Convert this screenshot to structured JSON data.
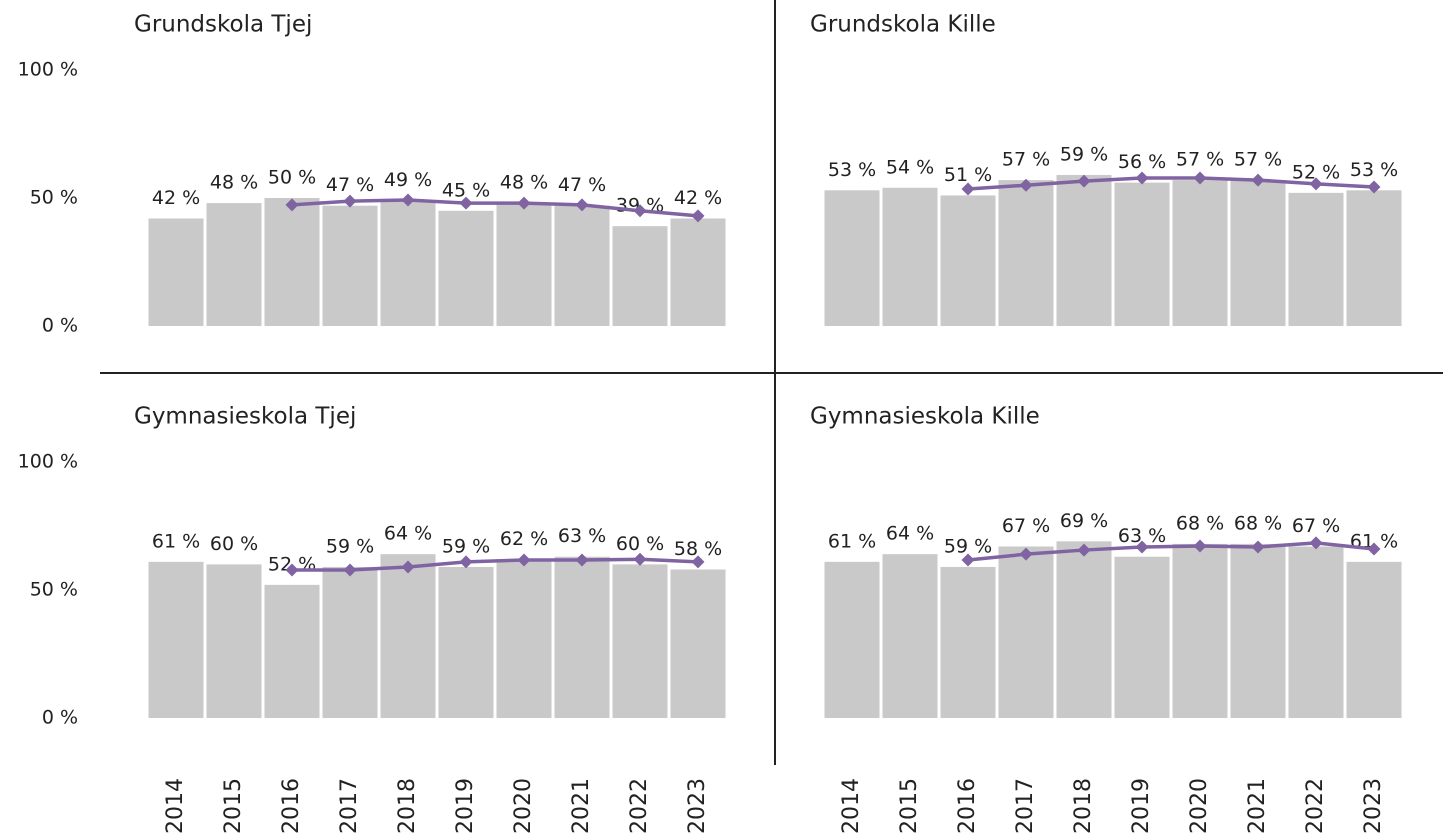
{
  "chart_data": [
    {
      "type": "bar-line",
      "title": "Grundskola Tjej",
      "ylim": [
        0,
        100
      ],
      "yticks": [
        {
          "value": 0,
          "label": "0 %"
        },
        {
          "value": 50,
          "label": "50 %"
        },
        {
          "value": 100,
          "label": "100 %"
        }
      ],
      "series": [
        {
          "type": "bar",
          "color": "#c9c9c9",
          "values": [
            42,
            48,
            50,
            47,
            49,
            45,
            48,
            47,
            39,
            42
          ],
          "value_labels": [
            "42 %",
            "48 %",
            "50 %",
            "47 %",
            "49 %",
            "45 %",
            "48 %",
            "47 %",
            "39 %",
            "42 %"
          ]
        },
        {
          "type": "line",
          "color": "#8064a2",
          "values": [
            null,
            null,
            47.3,
            48.8,
            49.2,
            48,
            48,
            47.3,
            45,
            43
          ]
        }
      ]
    },
    {
      "type": "bar-line",
      "title": "Grundskola Kille",
      "ylim": [
        0,
        100
      ],
      "series": [
        {
          "type": "bar",
          "color": "#c9c9c9",
          "values": [
            53,
            54,
            51,
            57,
            59,
            56,
            57,
            57,
            52,
            53
          ],
          "value_labels": [
            "53 %",
            "54 %",
            "51 %",
            "57 %",
            "59 %",
            "56 %",
            "57 %",
            "57 %",
            "52 %",
            "53 %"
          ]
        },
        {
          "type": "line",
          "color": "#8064a2",
          "values": [
            null,
            null,
            53.5,
            55,
            56.6,
            57.8,
            57.8,
            57,
            55.5,
            54.3
          ]
        }
      ]
    },
    {
      "type": "bar-line",
      "title": "Gymnasieskola Tjej",
      "categories": [
        "2014",
        "2015",
        "2016",
        "2017",
        "2018",
        "2019",
        "2020",
        "2021",
        "2022",
        "2023"
      ],
      "ylim": [
        0,
        100
      ],
      "yticks": [
        {
          "value": 0,
          "label": "0 %"
        },
        {
          "value": 50,
          "label": "50 %"
        },
        {
          "value": 100,
          "label": "100 %"
        }
      ],
      "series": [
        {
          "type": "bar",
          "color": "#c9c9c9",
          "values": [
            61,
            60,
            52,
            59,
            64,
            59,
            62,
            63,
            60,
            58
          ],
          "value_labels": [
            "61 %",
            "60 %",
            "52 %",
            "59 %",
            "64 %",
            "59 %",
            "62 %",
            "63 %",
            "60 %",
            "58 %"
          ]
        },
        {
          "type": "line",
          "color": "#8064a2",
          "values": [
            null,
            null,
            57.8,
            57.8,
            59,
            61,
            61.7,
            61.7,
            62,
            61
          ]
        }
      ]
    },
    {
      "type": "bar-line",
      "title": "Gymnasieskola Kille",
      "categories": [
        "2014",
        "2015",
        "2016",
        "2017",
        "2018",
        "2019",
        "2020",
        "2021",
        "2022",
        "2023"
      ],
      "ylim": [
        0,
        100
      ],
      "series": [
        {
          "type": "bar",
          "color": "#c9c9c9",
          "values": [
            61,
            64,
            59,
            67,
            69,
            63,
            68,
            68,
            67,
            61
          ],
          "value_labels": [
            "61 %",
            "64 %",
            "59 %",
            "67 %",
            "69 %",
            "63 %",
            "68 %",
            "68 %",
            "67 %",
            "61 %"
          ]
        },
        {
          "type": "line",
          "color": "#8064a2",
          "values": [
            null,
            null,
            61.7,
            64,
            65.6,
            66.8,
            67.2,
            66.8,
            68.4,
            66
          ]
        }
      ]
    }
  ]
}
